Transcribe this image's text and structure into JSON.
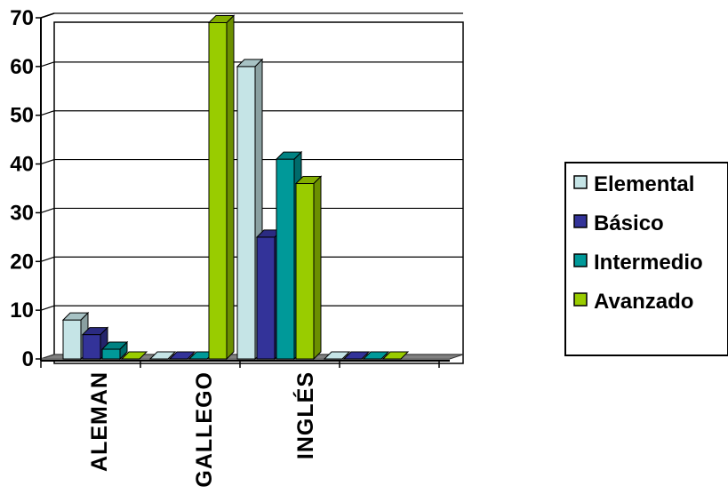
{
  "chart_data": {
    "type": "bar",
    "categories": [
      "ALEMAN",
      "GALLEGO",
      "INGLÉS",
      ""
    ],
    "series": [
      {
        "name": "Elemental",
        "values": [
          8,
          0,
          60,
          0
        ]
      },
      {
        "name": "Básico",
        "values": [
          5,
          0,
          25,
          0
        ]
      },
      {
        "name": "Intermedio",
        "values": [
          2,
          0,
          41,
          0
        ]
      },
      {
        "name": "Avanzado",
        "values": [
          0,
          69,
          36,
          0
        ]
      }
    ],
    "ylim": [
      0,
      70
    ],
    "yticks": [
      "0",
      "10",
      "20",
      "30",
      "40",
      "50",
      "60",
      "70"
    ],
    "grid": true,
    "legend_position": "right",
    "three_d": true
  },
  "colors": {
    "series": [
      "#c5e4e6",
      "#333399",
      "#009999",
      "#99cc00"
    ],
    "floor": "#808080",
    "grid": "#000000"
  }
}
